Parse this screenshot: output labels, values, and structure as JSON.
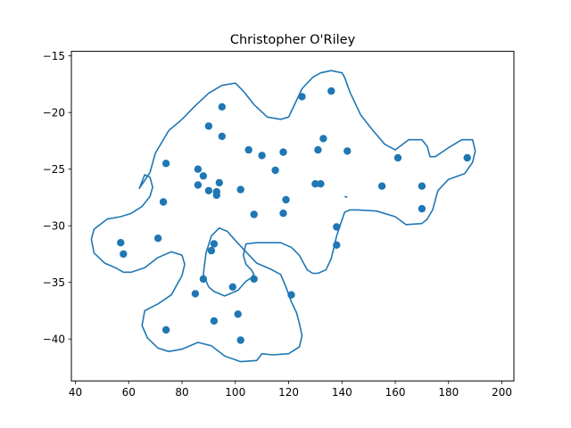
{
  "chart_data": {
    "type": "scatter",
    "title": "Christopher O'Riley",
    "xlabel": "",
    "ylabel": "",
    "xlim": [
      38.5,
      204.5
    ],
    "ylim": [
      -43.7,
      -14.6
    ],
    "xticks": [
      40,
      60,
      80,
      100,
      120,
      140,
      160,
      180,
      200
    ],
    "yticks": [
      -15,
      -20,
      -25,
      -30,
      -35,
      -40
    ],
    "xtick_labels": [
      "40",
      "60",
      "80",
      "100",
      "120",
      "140",
      "160",
      "180",
      "200"
    ],
    "ytick_labels": [
      "−15",
      "−20",
      "−25",
      "−30",
      "−35",
      "−40"
    ],
    "grid": false,
    "color": "#1f77b4",
    "series": [
      {
        "kind": "points",
        "x": [
          95,
          90,
          125,
          136,
          95,
          74,
          86,
          88,
          86,
          90,
          94,
          93,
          93,
          102,
          105,
          110,
          115,
          118,
          133,
          131,
          142,
          130,
          132,
          119,
          118,
          107,
          73,
          57,
          58,
          71,
          92,
          91,
          88,
          85,
          99,
          107,
          121,
          92,
          101,
          102,
          74,
          138,
          138,
          155,
          161,
          170,
          170,
          187
        ],
        "y": [
          -19.5,
          -21.2,
          -18.6,
          -18.1,
          -22.1,
          -24.5,
          -25.0,
          -25.6,
          -26.4,
          -26.9,
          -26.2,
          -27.0,
          -27.3,
          -26.8,
          -23.3,
          -23.8,
          -25.1,
          -23.5,
          -22.3,
          -23.3,
          -23.4,
          -26.3,
          -26.3,
          -27.7,
          -28.9,
          -29.0,
          -27.9,
          -31.5,
          -32.5,
          -31.1,
          -31.6,
          -32.2,
          -34.7,
          -36.0,
          -35.4,
          -34.7,
          -36.1,
          -38.4,
          -37.8,
          -40.1,
          -39.2,
          -30.1,
          -31.7,
          -26.5,
          -24.0,
          -26.5,
          -28.5,
          -24.0
        ]
      },
      {
        "kind": "contour",
        "x": [
          64,
          68,
          70,
          75,
          80,
          85,
          90,
          95,
          100,
          103,
          107,
          112,
          117,
          120,
          122,
          125,
          129,
          132,
          136,
          140,
          141,
          143,
          147,
          151,
          156,
          160,
          165,
          170,
          172,
          173,
          175,
          180,
          185,
          189,
          190,
          189,
          186,
          180,
          176,
          174,
          172,
          170,
          164,
          160,
          153,
          146,
          143,
          141,
          140,
          138,
          136,
          134,
          131,
          129,
          127,
          124,
          121,
          117,
          112,
          108,
          104,
          103,
          104,
          106,
          107,
          106,
          104,
          101,
          96,
          92,
          90,
          88,
          89,
          91,
          94,
          97,
          100,
          104,
          108,
          113,
          117,
          119,
          121,
          123,
          124,
          125,
          124,
          120,
          114,
          110,
          108,
          102,
          96,
          91,
          86,
          80,
          75,
          71,
          67,
          65,
          66,
          71,
          76,
          80,
          81,
          80,
          76,
          71,
          66,
          61,
          58,
          55,
          51,
          47,
          46,
          47,
          52,
          57,
          61,
          65,
          68,
          69,
          68,
          66,
          64
        ],
        "y": [
          -26.7,
          -25.3,
          -23.6,
          -21.6,
          -20.6,
          -19.4,
          -18.3,
          -17.6,
          -17.4,
          -18.1,
          -19.3,
          -20.4,
          -20.6,
          -20.4,
          -19.4,
          -17.9,
          -16.9,
          -16.5,
          -16.3,
          -16.5,
          -16.9,
          -18.2,
          -20.2,
          -21.4,
          -22.8,
          -23.3,
          -22.4,
          -22.4,
          -23.0,
          -23.9,
          -23.9,
          -23.1,
          -22.4,
          -22.4,
          -23.4,
          -24.4,
          -25.4,
          -25.9,
          -26.9,
          -28.6,
          -29.4,
          -29.8,
          -29.9,
          -29.2,
          -28.7,
          -28.6,
          -28.6,
          -28.8,
          -29.5,
          -30.9,
          -32.9,
          -33.9,
          -34.2,
          -34.2,
          -33.9,
          -32.6,
          -31.9,
          -31.5,
          -31.5,
          -31.5,
          -31.6,
          -32.6,
          -33.4,
          -33.9,
          -34.3,
          -34.6,
          -34.9,
          -35.7,
          -36.2,
          -35.8,
          -35.4,
          -34.3,
          -32.4,
          -30.9,
          -30.2,
          -30.5,
          -31.3,
          -32.3,
          -33.3,
          -33.8,
          -34.3,
          -35.4,
          -36.7,
          -37.7,
          -38.6,
          -39.7,
          -40.7,
          -41.3,
          -41.4,
          -41.3,
          -41.9,
          -42.0,
          -41.5,
          -40.6,
          -40.3,
          -40.9,
          -41.1,
          -40.8,
          -39.9,
          -38.8,
          -37.5,
          -36.9,
          -36.1,
          -34.4,
          -33.4,
          -32.6,
          -32.3,
          -32.8,
          -33.7,
          -34.1,
          -34.1,
          -33.7,
          -33.3,
          -32.4,
          -31.2,
          -30.3,
          -29.4,
          -29.2,
          -28.9,
          -28.3,
          -27.4,
          -26.6,
          -25.7,
          -25.5,
          -26.7
        ]
      },
      {
        "kind": "contour-fragment",
        "x": [
          141,
          142
        ],
        "y": [
          -27.4,
          -27.5
        ]
      }
    ]
  }
}
